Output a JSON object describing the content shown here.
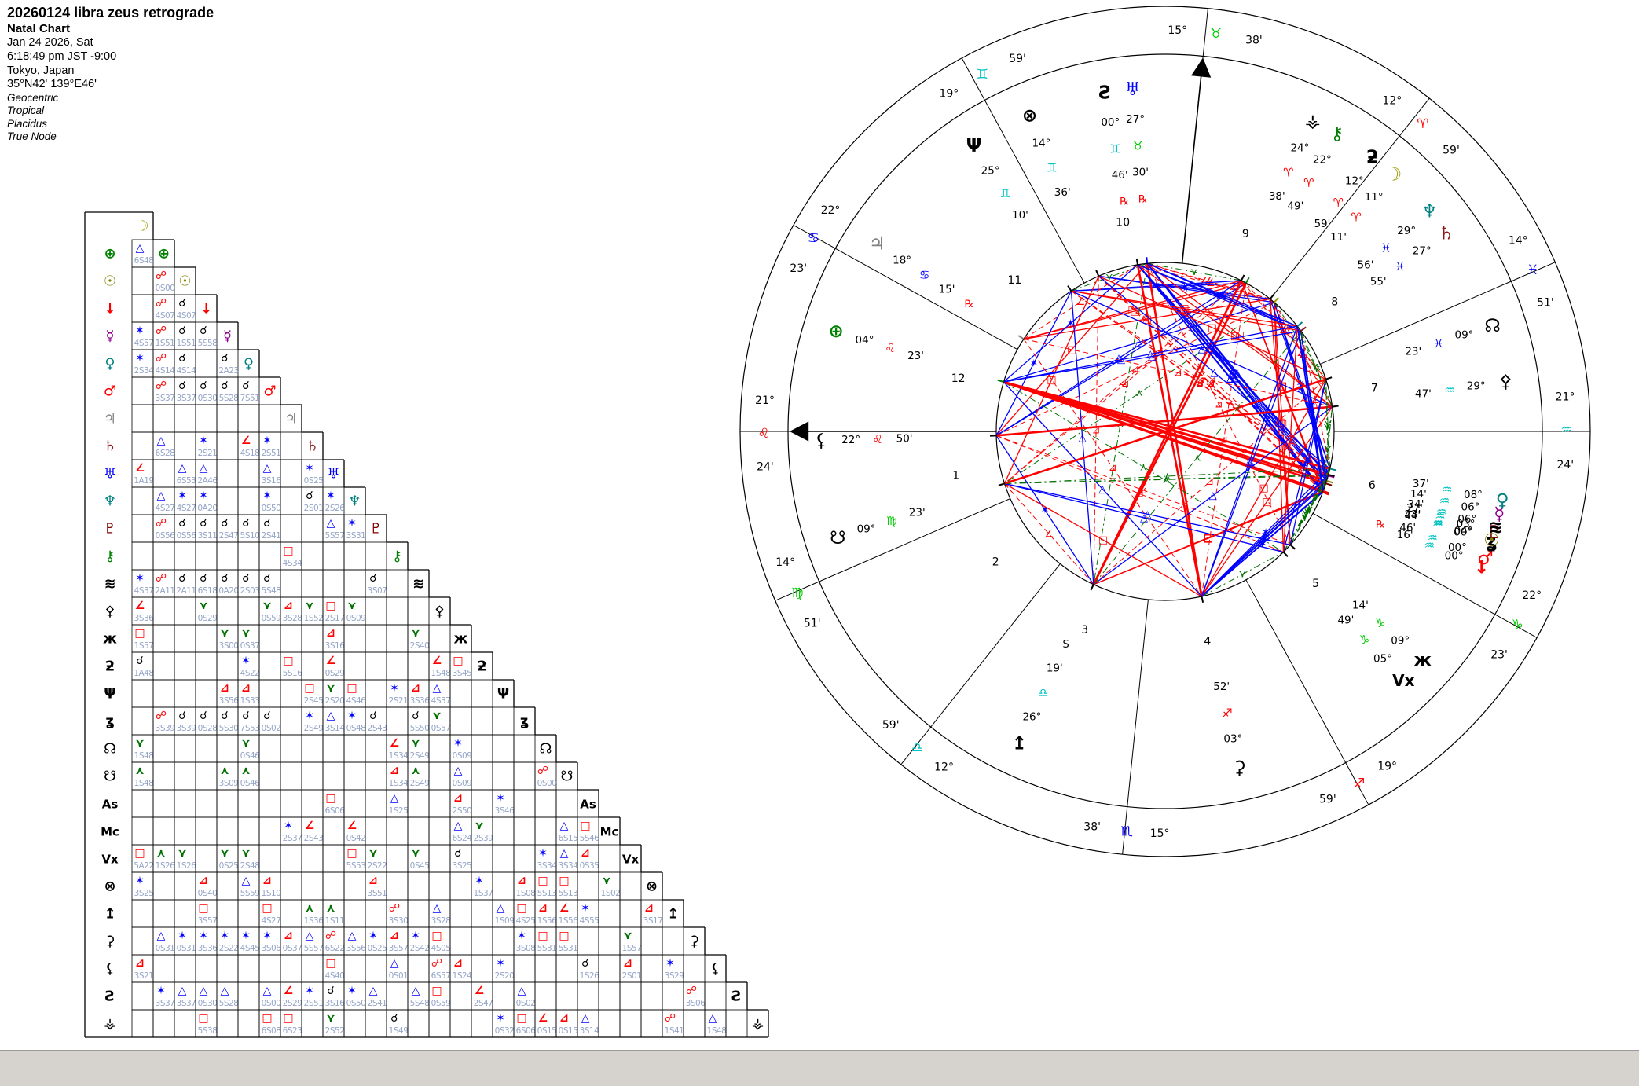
{
  "header": {
    "title": "20260124 libra zeus retrograde",
    "subtitle": "Natal Chart",
    "date": "Jan 24 2026, Sat",
    "time": "6:18:49 pm JST -9:00",
    "place": "Tokyo, Japan",
    "coords": "35°N42' 139°E46'",
    "settings": [
      "Geocentric",
      "Tropical",
      "Placidus",
      "True Node"
    ]
  },
  "signs": {
    "glyphs": [
      "♈",
      "♉",
      "♊",
      "♋",
      "♌",
      "♍",
      "♎",
      "♏",
      "♐",
      "♑",
      "♒",
      "♓"
    ],
    "element_colors": [
      "#ff0000",
      "#00cc00",
      "#00c2c2",
      "#0000ff"
    ]
  },
  "objects": {
    "moon": {
      "glyph": "☽",
      "color": "#9a9a00",
      "name": "Moon"
    },
    "earth": {
      "glyph": "⊕",
      "color": "#008000",
      "name": "Earth"
    },
    "sun": {
      "glyph": "☉",
      "color": "#808000",
      "name": "Sun"
    },
    "vulcan": {
      "glyph": "↓",
      "color": "#ff0000",
      "name": "Vulcan"
    },
    "mercury": {
      "glyph": "☿",
      "color": "#900090",
      "name": "Mercury"
    },
    "venus": {
      "glyph": "♀",
      "color": "#008080",
      "name": "Venus"
    },
    "mars": {
      "glyph": "♂",
      "color": "#ff0000",
      "name": "Mars"
    },
    "jupiter": {
      "glyph": "♃",
      "color": "#808080",
      "name": "Jupiter"
    },
    "saturn": {
      "glyph": "♄",
      "color": "#8b1a1a",
      "name": "Saturn"
    },
    "uranus": {
      "glyph": "♅",
      "color": "#0000ff",
      "name": "Uranus"
    },
    "neptune": {
      "glyph": "♆",
      "color": "#008080",
      "name": "Neptune"
    },
    "pluto": {
      "glyph": "♇",
      "color": "#800000",
      "name": "Pluto"
    },
    "chiron": {
      "glyph": "⚷",
      "color": "#008000",
      "name": "Chiron"
    },
    "poseidon": {
      "glyph": "≋",
      "color": "#000000",
      "name": "Poseidon"
    },
    "pallas": {
      "glyph": "⚴",
      "color": "#000000",
      "name": "Pallas"
    },
    "apollon": {
      "glyph": "ж",
      "color": "#000000",
      "name": "Apollon"
    },
    "cupido": {
      "glyph": "ƻ",
      "color": "#000000",
      "name": "Cupido"
    },
    "hades": {
      "glyph": "Ψ",
      "color": "#000000",
      "name": "Hades"
    },
    "juno": {
      "glyph": "ʓ",
      "color": "#000000",
      "name": "Juno"
    },
    "nnode": {
      "glyph": "☊",
      "color": "#000000",
      "name": "North Node"
    },
    "snode": {
      "glyph": "☋",
      "color": "#000000",
      "name": "South Node"
    },
    "asc": {
      "glyph": "As",
      "color": "#000000",
      "name": "Ascendant"
    },
    "mc": {
      "glyph": "Mc",
      "color": "#000000",
      "name": "Midheaven"
    },
    "vertex": {
      "glyph": "Vx",
      "color": "#000000",
      "name": "Vertex"
    },
    "fortune": {
      "glyph": "⊗",
      "color": "#000000",
      "name": "Part of Fortune"
    },
    "zeus": {
      "glyph": "↥",
      "color": "#000000",
      "name": "Zeus"
    },
    "ceres": {
      "glyph": "⚳",
      "color": "#000000",
      "name": "Ceres"
    },
    "lilith": {
      "glyph": "⚸",
      "color": "#000000",
      "name": "Lilith"
    },
    "kronos": {
      "glyph": "Ƨ",
      "color": "#000000",
      "name": "Kronos"
    },
    "vesta": {
      "glyph": "⚶",
      "color": "#000000",
      "name": "Vesta"
    }
  },
  "wheel": {
    "cusps": [
      {
        "house": "1",
        "deg": "21°",
        "sign": 4,
        "min": "24'",
        "lon": 141.4
      },
      {
        "house": "2",
        "deg": "14°",
        "sign": 5,
        "min": "51'",
        "lon": 164.85
      },
      {
        "house": "3",
        "deg": "12°",
        "sign": 6,
        "min": "59'",
        "lon": 192.98
      },
      {
        "house": "4",
        "deg": "15°",
        "sign": 7,
        "min": "38'",
        "lon": 225.63
      },
      {
        "house": "5",
        "deg": "19°",
        "sign": 8,
        "min": "59'",
        "lon": 259.98
      },
      {
        "house": "6",
        "deg": "22°",
        "sign": 9,
        "min": "23'",
        "lon": 292.38
      },
      {
        "house": "7",
        "deg": "21°",
        "sign": 10,
        "min": "24'",
        "lon": 321.4
      },
      {
        "house": "8",
        "deg": "14°",
        "sign": 11,
        "min": "51'",
        "lon": 344.85
      },
      {
        "house": "9",
        "deg": "12°",
        "sign": 0,
        "min": "59'",
        "lon": 12.98
      },
      {
        "house": "10",
        "deg": "15°",
        "sign": 1,
        "min": "38'",
        "lon": 45.63
      },
      {
        "house": "11",
        "deg": "19°",
        "sign": 2,
        "min": "59'",
        "lon": 79.98
      },
      {
        "house": "12",
        "deg": "22°",
        "sign": 3,
        "min": "23'",
        "lon": 112.38
      }
    ],
    "planets": [
      {
        "id": "moon",
        "deg": "11°",
        "sign": 0,
        "min": "11'",
        "lon": 11.18,
        "flag": ""
      },
      {
        "id": "cupido",
        "deg": "12°",
        "sign": 0,
        "min": "59'",
        "lon": 12.98,
        "flag": ""
      },
      {
        "id": "chiron",
        "deg": "22°",
        "sign": 0,
        "min": "49'",
        "lon": 22.82,
        "flag": ""
      },
      {
        "id": "vesta",
        "deg": "24°",
        "sign": 0,
        "min": "38'",
        "lon": 24.63,
        "flag": ""
      },
      {
        "id": "uranus",
        "deg": "27°",
        "sign": 1,
        "min": "30'",
        "lon": 57.5,
        "flag": "R"
      },
      {
        "id": "kronos",
        "deg": "00°",
        "sign": 2,
        "min": "46'",
        "lon": 60.77,
        "flag": "R"
      },
      {
        "id": "fortune",
        "deg": "14°",
        "sign": 2,
        "min": "36'",
        "lon": 74.6,
        "flag": ""
      },
      {
        "id": "hades",
        "deg": "25°",
        "sign": 2,
        "min": "10'",
        "lon": 85.17,
        "flag": ""
      },
      {
        "id": "jupiter",
        "deg": "18°",
        "sign": 3,
        "min": "15'",
        "lon": 108.25,
        "flag": "R"
      },
      {
        "id": "earth",
        "deg": "04°",
        "sign": 4,
        "min": "23'",
        "lon": 124.38,
        "flag": ""
      },
      {
        "id": "lilith",
        "deg": "22°",
        "sign": 4,
        "min": "50'",
        "lon": 142.83,
        "flag": ""
      },
      {
        "id": "snode",
        "deg": "09°",
        "sign": 5,
        "min": "23'",
        "lon": 159.38,
        "flag": ""
      },
      {
        "id": "zeus",
        "deg": "26°",
        "sign": 6,
        "min": "19'",
        "lon": 206.32,
        "flag": "S"
      },
      {
        "id": "ceres",
        "deg": "03°",
        "sign": 8,
        "min": "52'",
        "lon": 243.87,
        "flag": ""
      },
      {
        "id": "vertex",
        "deg": "05°",
        "sign": 9,
        "min": "49'",
        "lon": 275.82,
        "flag": ""
      },
      {
        "id": "apollon",
        "deg": "09°",
        "sign": 9,
        "min": "14'",
        "lon": 279.23,
        "flag": ""
      },
      {
        "id": "vulcan",
        "deg": "00°",
        "sign": 10,
        "min": "16'",
        "lon": 300.27,
        "flag": "R"
      },
      {
        "id": "juno",
        "deg": "00°",
        "sign": 10,
        "min": "44'",
        "lon": 300.73,
        "flag": ""
      },
      {
        "id": "mars",
        "deg": "00°",
        "sign": 10,
        "min": "46'",
        "lon": 300.77,
        "flag": ""
      },
      {
        "id": "pluto",
        "deg": "03°",
        "sign": 10,
        "min": "27'",
        "lon": 303.45,
        "flag": ""
      },
      {
        "id": "sun",
        "deg": "04°",
        "sign": 10,
        "min": "23'",
        "lon": 304.38,
        "flag": ""
      },
      {
        "id": "mercury",
        "deg": "06°",
        "sign": 10,
        "min": "14'",
        "lon": 306.23,
        "flag": ""
      },
      {
        "id": "poseidon",
        "deg": "06°",
        "sign": 10,
        "min": "34'",
        "lon": 306.57,
        "flag": ""
      },
      {
        "id": "venus",
        "deg": "08°",
        "sign": 10,
        "min": "37'",
        "lon": 308.62,
        "flag": ""
      },
      {
        "id": "pallas",
        "deg": "29°",
        "sign": 10,
        "min": "47'",
        "lon": 329.78,
        "flag": ""
      },
      {
        "id": "nnode",
        "deg": "09°",
        "sign": 11,
        "min": "23'",
        "lon": 339.38,
        "flag": ""
      },
      {
        "id": "saturn",
        "deg": "27°",
        "sign": 11,
        "min": "55'",
        "lon": 357.92,
        "flag": ""
      },
      {
        "id": "neptune",
        "deg": "29°",
        "sign": 11,
        "min": "56'",
        "lon": 359.93,
        "flag": ""
      }
    ],
    "houses": [
      "1",
      "2",
      "3",
      "4",
      "5",
      "6",
      "7",
      "8",
      "9",
      "10",
      "11",
      "12"
    ],
    "axes": {
      "asc_lon": 141.4,
      "mc_lon": 45.63
    },
    "retro_glyph": "℞",
    "station_glyph": "S"
  },
  "aspects": {
    "types": [
      {
        "id": "conjunction",
        "angle": 0,
        "orb": 8,
        "glyph": "☌",
        "color": "#000000",
        "line": "none"
      },
      {
        "id": "opposition",
        "angle": 180,
        "orb": 8,
        "glyph": "☍",
        "color": "#ff0000",
        "line": "solid-thick"
      },
      {
        "id": "trine",
        "angle": 120,
        "orb": 7,
        "glyph": "△",
        "color": "#0000ff",
        "line": "solid"
      },
      {
        "id": "square",
        "angle": 90,
        "orb": 7,
        "glyph": "□",
        "color": "#ff0000",
        "line": "solid"
      },
      {
        "id": "sextile",
        "angle": 60,
        "orb": 5,
        "glyph": "✶",
        "color": "#0000ff",
        "line": "solid"
      },
      {
        "id": "semisquare",
        "angle": 45,
        "orb": 4.5,
        "glyph": "∠",
        "color": "#ff0000",
        "line": "dash"
      },
      {
        "id": "sesquiquadrate",
        "angle": 135,
        "orb": 4.5,
        "glyph": "⊿",
        "color": "#ff0000",
        "line": "dash"
      },
      {
        "id": "semisextile",
        "angle": 30,
        "orb": 3,
        "glyph": "⋎",
        "color": "#007000",
        "line": "dashdot"
      },
      {
        "id": "quincunx",
        "angle": 150,
        "orb": 3.5,
        "glyph": "⋏",
        "color": "#007000",
        "line": "dashdot"
      }
    ],
    "orb_text_color": "#96a6c8",
    "applying_cells": [
      "10,1",
      "10,4",
      "6,5",
      "14,2",
      "14,3",
      "14,5",
      "17,1",
      "24,1",
      "11,4"
    ]
  },
  "grid": {
    "row_order": [
      "moon",
      "earth",
      "sun",
      "vulcan",
      "mercury",
      "venus",
      "mars",
      "jupiter",
      "saturn",
      "uranus",
      "neptune",
      "pluto",
      "chiron",
      "poseidon",
      "pallas",
      "apollon",
      "cupido",
      "hades",
      "juno",
      "nnode",
      "snode",
      "asc",
      "mc",
      "vertex",
      "fortune",
      "zeus",
      "ceres",
      "lilith",
      "kronos",
      "vesta"
    ]
  }
}
